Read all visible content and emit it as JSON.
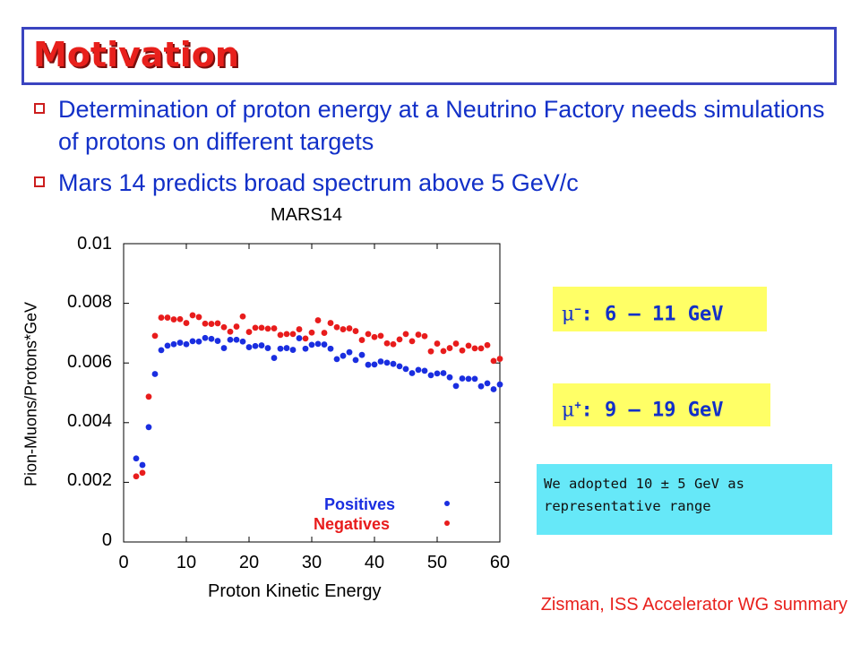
{
  "slide": {
    "title": "Motivation",
    "bullets": [
      "Determination of proton energy at a Neutrino Factory needs simulations of protons on different targets",
      "Mars 14 predicts broad spectrum above 5 GeV/c"
    ],
    "callouts": {
      "mu_minus": {
        "symbol": "μ",
        "sign": "−",
        "text": ": 6 – 11 GeV"
      },
      "mu_plus": {
        "symbol": "μ",
        "sign": "+",
        "text": ": 9 – 19 GeV"
      }
    },
    "note": "We adopted 10 ± 5 GeV as representative range",
    "credit": "Zisman, ISS Accelerator WG summary",
    "colors": {
      "title": "#e8201c",
      "bullet_text": "#1230c8",
      "title_border": "#3a44c0",
      "callout_bg": "#ffff66",
      "note_bg": "#66e8f8"
    }
  },
  "chart_data": {
    "type": "scatter",
    "title": "MARS14",
    "xlabel": "Proton Kinetic Energy",
    "ylabel": "Pion-Muons/Protons*GeV",
    "xlim": [
      0,
      60
    ],
    "ylim": [
      0,
      0.01
    ],
    "x_ticks": [
      "0",
      "10",
      "20",
      "30",
      "40",
      "50",
      "60"
    ],
    "y_ticks": [
      "0",
      "0.002",
      "0.004",
      "0.006",
      "0.008",
      "0.01"
    ],
    "legend_placement": "bottom-right",
    "series": [
      {
        "name": "Positives",
        "color": "#1a2ee0",
        "points": [
          [
            2,
            0.0028
          ],
          [
            3,
            0.00258
          ],
          [
            4,
            0.00385
          ],
          [
            5,
            0.00563
          ],
          [
            6,
            0.00643
          ],
          [
            7,
            0.00658
          ],
          [
            8,
            0.00663
          ],
          [
            9,
            0.00668
          ],
          [
            10,
            0.00663
          ],
          [
            11,
            0.00673
          ],
          [
            12,
            0.00672
          ],
          [
            13,
            0.00684
          ],
          [
            14,
            0.00681
          ],
          [
            15,
            0.00674
          ],
          [
            16,
            0.0065
          ],
          [
            17,
            0.00678
          ],
          [
            18,
            0.00678
          ],
          [
            19,
            0.00672
          ],
          [
            20,
            0.00653
          ],
          [
            21,
            0.00657
          ],
          [
            22,
            0.00659
          ],
          [
            23,
            0.0065
          ],
          [
            24,
            0.00617
          ],
          [
            25,
            0.00648
          ],
          [
            26,
            0.0065
          ],
          [
            27,
            0.00644
          ],
          [
            28,
            0.00683
          ],
          [
            29,
            0.00648
          ],
          [
            30,
            0.00661
          ],
          [
            31,
            0.00664
          ],
          [
            32,
            0.00662
          ],
          [
            33,
            0.00648
          ],
          [
            34,
            0.00613
          ],
          [
            35,
            0.00624
          ],
          [
            36,
            0.00636
          ],
          [
            37,
            0.0061
          ],
          [
            38,
            0.00627
          ],
          [
            39,
            0.00594
          ],
          [
            40,
            0.00595
          ],
          [
            41,
            0.00605
          ],
          [
            42,
            0.00601
          ],
          [
            43,
            0.00597
          ],
          [
            44,
            0.00589
          ],
          [
            45,
            0.0058
          ],
          [
            46,
            0.00566
          ],
          [
            47,
            0.00577
          ],
          [
            48,
            0.00574
          ],
          [
            49,
            0.00559
          ],
          [
            50,
            0.00565
          ],
          [
            51,
            0.00566
          ],
          [
            52,
            0.00552
          ],
          [
            53,
            0.00523
          ],
          [
            54,
            0.00548
          ],
          [
            55,
            0.00547
          ],
          [
            56,
            0.00547
          ],
          [
            57,
            0.00522
          ],
          [
            58,
            0.00532
          ],
          [
            59,
            0.00512
          ],
          [
            60,
            0.00528
          ]
        ]
      },
      {
        "name": "Negatives",
        "color": "#e81c1c",
        "points": [
          [
            2,
            0.0022
          ],
          [
            3,
            0.00232
          ],
          [
            4,
            0.00487
          ],
          [
            5,
            0.00691
          ],
          [
            6,
            0.00752
          ],
          [
            7,
            0.00752
          ],
          [
            8,
            0.00746
          ],
          [
            9,
            0.00747
          ],
          [
            10,
            0.00734
          ],
          [
            11,
            0.0076
          ],
          [
            12,
            0.00754
          ],
          [
            13,
            0.00732
          ],
          [
            14,
            0.00731
          ],
          [
            15,
            0.00733
          ],
          [
            16,
            0.0072
          ],
          [
            17,
            0.00705
          ],
          [
            18,
            0.00722
          ],
          [
            19,
            0.00756
          ],
          [
            20,
            0.00704
          ],
          [
            21,
            0.00718
          ],
          [
            22,
            0.00718
          ],
          [
            23,
            0.00715
          ],
          [
            24,
            0.00716
          ],
          [
            25,
            0.00694
          ],
          [
            26,
            0.00697
          ],
          [
            27,
            0.00697
          ],
          [
            28,
            0.00713
          ],
          [
            29,
            0.00682
          ],
          [
            30,
            0.00702
          ],
          [
            31,
            0.00743
          ],
          [
            32,
            0.00701
          ],
          [
            33,
            0.00734
          ],
          [
            34,
            0.0072
          ],
          [
            35,
            0.00713
          ],
          [
            36,
            0.00716
          ],
          [
            37,
            0.00707
          ],
          [
            38,
            0.00677
          ],
          [
            39,
            0.00697
          ],
          [
            40,
            0.00687
          ],
          [
            41,
            0.00691
          ],
          [
            42,
            0.00666
          ],
          [
            43,
            0.00663
          ],
          [
            44,
            0.00679
          ],
          [
            45,
            0.00697
          ],
          [
            46,
            0.00673
          ],
          [
            47,
            0.00695
          ],
          [
            48,
            0.0069
          ],
          [
            49,
            0.00639
          ],
          [
            50,
            0.00665
          ],
          [
            51,
            0.0064
          ],
          [
            52,
            0.0065
          ],
          [
            53,
            0.00665
          ],
          [
            54,
            0.00642
          ],
          [
            55,
            0.00658
          ],
          [
            56,
            0.00649
          ],
          [
            57,
            0.00649
          ],
          [
            58,
            0.0066
          ],
          [
            59,
            0.00607
          ],
          [
            60,
            0.00614
          ]
        ]
      }
    ]
  }
}
